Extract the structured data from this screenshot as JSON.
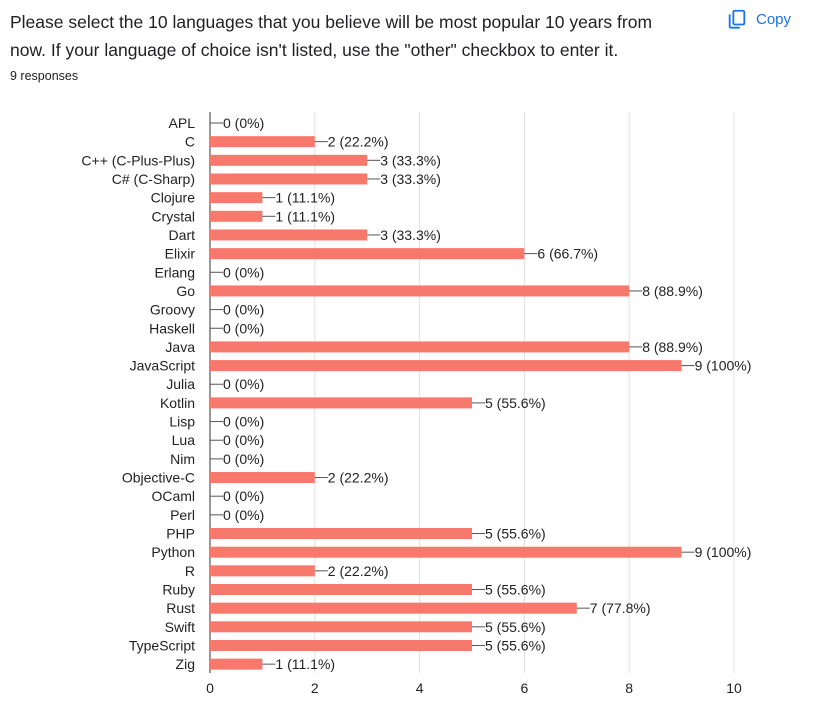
{
  "question": {
    "title": "Please select the 10 languages that you believe will be most popular 10 years from now. If your language of choice isn't listed, use the \"other\" checkbox to enter it.",
    "responses": "9 responses"
  },
  "copy_button": {
    "label": "Copy",
    "icon": "copy-icon",
    "color": "#1a73e8"
  },
  "chart_data": {
    "type": "bar",
    "orientation": "horizontal",
    "bar_color": "#f6796c",
    "xlim": [
      0,
      10
    ],
    "xticks": [
      "0",
      "2",
      "4",
      "6",
      "8",
      "10"
    ],
    "grid": true,
    "categories": [
      "APL",
      "C",
      "C++ (C-Plus-Plus)",
      "C# (C-Sharp)",
      "Clojure",
      "Crystal",
      "Dart",
      "Elixir",
      "Erlang",
      "Go",
      "Groovy",
      "Haskell",
      "Java",
      "JavaScript",
      "Julia",
      "Kotlin",
      "Lisp",
      "Lua",
      "Nim",
      "Objective-C",
      "OCaml",
      "Perl",
      "PHP",
      "Python",
      "R",
      "Ruby",
      "Rust",
      "Swift",
      "TypeScript",
      "Zig"
    ],
    "values": [
      0,
      2,
      3,
      3,
      1,
      1,
      3,
      6,
      0,
      8,
      0,
      0,
      8,
      9,
      0,
      5,
      0,
      0,
      0,
      2,
      0,
      0,
      5,
      9,
      2,
      5,
      7,
      5,
      5,
      1
    ],
    "labels": [
      "0 (0%)",
      "2 (22.2%)",
      "3 (33.3%)",
      "3 (33.3%)",
      "1 (11.1%)",
      "1 (11.1%)",
      "3 (33.3%)",
      "6 (66.7%)",
      "0 (0%)",
      "8 (88.9%)",
      "0 (0%)",
      "0 (0%)",
      "8 (88.9%)",
      "9 (100%)",
      "0 (0%)",
      "5 (55.6%)",
      "0 (0%)",
      "0 (0%)",
      "0 (0%)",
      "2 (22.2%)",
      "0 (0%)",
      "0 (0%)",
      "5 (55.6%)",
      "9 (100%)",
      "2 (22.2%)",
      "5 (55.6%)",
      "7 (77.8%)",
      "5 (55.6%)",
      "5 (55.6%)",
      "1 (11.1%)"
    ]
  }
}
